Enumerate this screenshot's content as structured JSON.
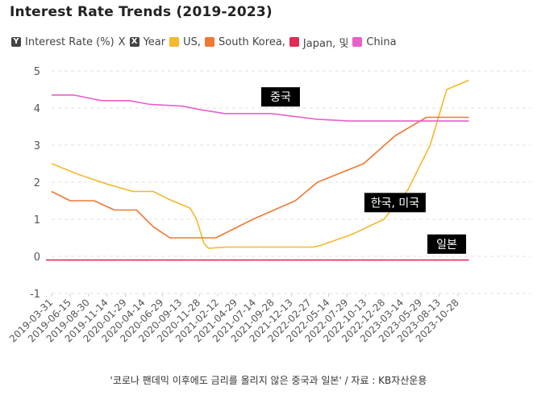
{
  "chart_data": {
    "type": "line",
    "title": "Interest Rate Trends (2019-2023)",
    "legend": {
      "axis_items": [
        {
          "badge": "Y",
          "label": "Interest Rate (%)",
          "suffix": "X"
        },
        {
          "badge": "X",
          "label": "Year"
        }
      ],
      "series_labels": [
        "US,",
        "South Korea,",
        "Japan, 및",
        "China"
      ]
    },
    "ylim": [
      -1,
      5
    ],
    "yticks": [
      "-1",
      "0",
      "1",
      "2",
      "3",
      "4",
      "5"
    ],
    "xticks": [
      "2019-03-31",
      "2019-06-15",
      "2019-08-30",
      "2019-11-14",
      "2020-01-29",
      "2020-04-14",
      "2020-06-29",
      "2020-09-13",
      "2020-11-28",
      "2021-02-12",
      "2021-04-29",
      "2021-07-14",
      "2021-09-28",
      "2021-12-13",
      "2022-02-27",
      "2022-05-14",
      "2022-07-29",
      "2022-10-13",
      "2022-12-28",
      "2023-03-14",
      "2023-05-29",
      "2023-08-13",
      "2023-10-28"
    ],
    "series": [
      {
        "name": "US",
        "color": "#f5b82e",
        "points": [
          [
            0,
            2.5
          ],
          [
            1.5,
            2.2
          ],
          [
            3,
            1.95
          ],
          [
            4.4,
            1.75
          ],
          [
            5.5,
            1.75
          ],
          [
            6.3,
            1.55
          ],
          [
            7.5,
            1.3
          ],
          [
            7.85,
            1.0
          ],
          [
            8.25,
            0.35
          ],
          [
            8.5,
            0.22
          ],
          [
            9.5,
            0.25
          ],
          [
            14.2,
            0.25
          ],
          [
            14.6,
            0.3
          ],
          [
            16.3,
            0.6
          ],
          [
            18,
            1.0
          ],
          [
            19.3,
            1.8
          ],
          [
            20.5,
            3.0
          ],
          [
            21.4,
            4.5
          ],
          [
            22.6,
            4.75
          ]
        ]
      },
      {
        "name": "South Korea",
        "color": "#ef7832",
        "points": [
          [
            0,
            1.75
          ],
          [
            1,
            1.5
          ],
          [
            2.3,
            1.5
          ],
          [
            3.4,
            1.25
          ],
          [
            4.6,
            1.25
          ],
          [
            5.5,
            0.8
          ],
          [
            6.4,
            0.5
          ],
          [
            8.9,
            0.5
          ],
          [
            10.9,
            1.0
          ],
          [
            13.2,
            1.5
          ],
          [
            14.4,
            2.0
          ],
          [
            16.9,
            2.5
          ],
          [
            18.6,
            3.25
          ],
          [
            20.3,
            3.75
          ],
          [
            22.6,
            3.75
          ]
        ]
      },
      {
        "name": "Japan",
        "color": "#e22a55",
        "points": [
          [
            -0.3,
            -0.1
          ],
          [
            22.6,
            -0.1
          ]
        ]
      },
      {
        "name": "China",
        "color": "#e95fca",
        "points": [
          [
            0,
            4.35
          ],
          [
            1.2,
            4.35
          ],
          [
            2.7,
            4.2
          ],
          [
            4.2,
            4.2
          ],
          [
            5.3,
            4.1
          ],
          [
            7.1,
            4.05
          ],
          [
            8.1,
            3.95
          ],
          [
            9.4,
            3.85
          ],
          [
            11.9,
            3.85
          ],
          [
            14.3,
            3.7
          ],
          [
            16.1,
            3.65
          ],
          [
            22.6,
            3.65
          ]
        ]
      }
    ],
    "annotations": [
      {
        "text": "중국",
        "x": 12.4,
        "y": 4.3
      },
      {
        "text": "한국, 미국",
        "x": 18.6,
        "y": 1.45
      },
      {
        "text": "일본",
        "x": 21.4,
        "y": 0.33
      }
    ]
  },
  "caption": "'코로나 팬데믹 이후에도 금리를 올리지 않은 중국과 일본' / 자료 : KB자산운용"
}
